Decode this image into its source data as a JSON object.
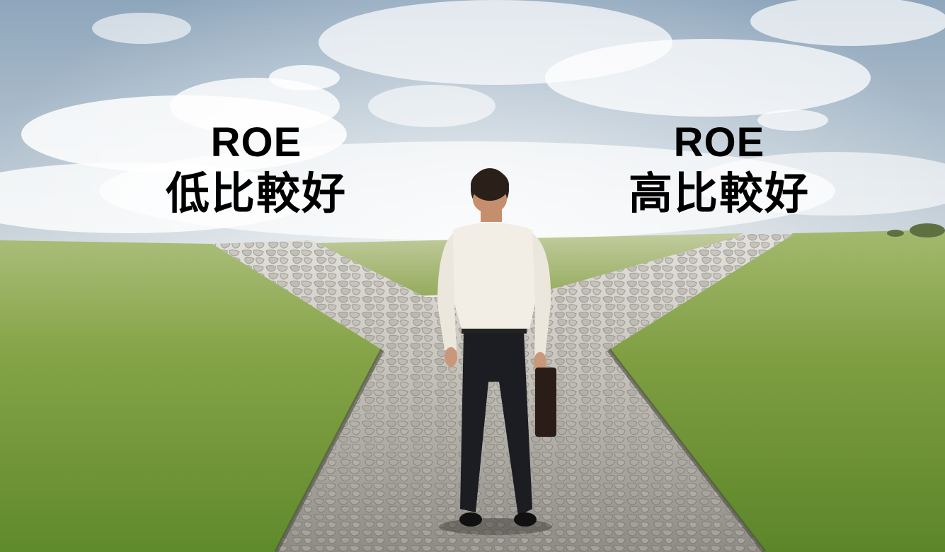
{
  "captions": {
    "left": {
      "line1": "ROE",
      "line2": "低比較好"
    },
    "right": {
      "line1": "ROE",
      "line2": "高比較好"
    }
  },
  "colors": {
    "sky_top": "#8fa7bd",
    "sky_bottom": "#eef1f0",
    "grass": "#7ea044",
    "path": "#b7b4ab",
    "text": "#000000"
  }
}
